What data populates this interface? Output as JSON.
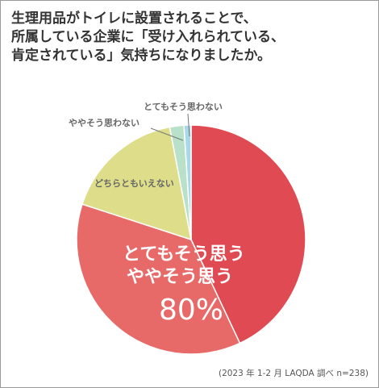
{
  "question": "生理用品がトイレに設置されることで、\n所属している企業に「受け入れられている、\n肯定されている」気持ちになりましたか。",
  "note": "(2023 年 1-2 月 LAQDA 調べ n=238)",
  "colors": {
    "border": "#9a9a9a",
    "title": "#333333",
    "label": "#666666",
    "highlight_text": "#ffffff"
  },
  "chart_data": {
    "type": "pie",
    "title": "",
    "start": "top",
    "direction": "clockwise",
    "slices": [
      {
        "label": "とてもそう思う",
        "value": 43,
        "color": "#e04a52",
        "show_label": false
      },
      {
        "label": "ややそう思う",
        "value": 37,
        "color": "#e86a68",
        "show_label": false
      },
      {
        "label": "どちらともいえない",
        "value": 17,
        "color": "#dede8a",
        "show_label": true
      },
      {
        "label": "ややそう思わない",
        "value": 2,
        "color": "#b9e1c9",
        "show_label": true
      },
      {
        "label": "とてもそう思わない",
        "value": 1,
        "color": "#a9d8e6",
        "show_label": true
      }
    ],
    "highlight": {
      "line1": "とてもそう思う",
      "line2": "ややそう思う",
      "value": "80%"
    }
  }
}
